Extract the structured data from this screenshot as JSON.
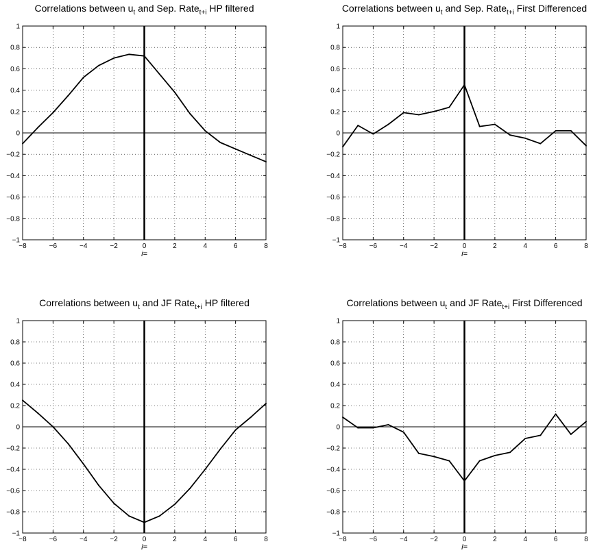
{
  "chart_data": [
    {
      "type": "line",
      "title": "Correlations between u_t and Sep. Rate_t+i HP filtered",
      "title_parts": {
        "pre": "Correlations between u",
        "sub1": "t",
        "mid": " and Sep. Rate",
        "sub2": "t+i",
        "post": " HP filtered"
      },
      "xlabel": "i=",
      "ylabel": "",
      "xlim": [
        -8,
        8
      ],
      "ylim": [
        -1,
        1
      ],
      "xticks": [
        -8,
        -6,
        -4,
        -2,
        0,
        2,
        4,
        6,
        8
      ],
      "yticks": [
        -1,
        -0.8,
        -0.6,
        -0.4,
        -0.2,
        0,
        0.2,
        0.4,
        0.6,
        0.8,
        1
      ],
      "grid": true,
      "series_color": "#000000",
      "x": [
        -8,
        -7,
        -6,
        -5,
        -4,
        -3,
        -2,
        -1,
        0,
        1,
        2,
        3,
        4,
        5,
        6,
        7,
        8
      ],
      "values": [
        -0.1,
        0.05,
        0.19,
        0.35,
        0.52,
        0.63,
        0.7,
        0.735,
        0.72,
        0.55,
        0.38,
        0.18,
        0.02,
        -0.09,
        -0.15,
        -0.21,
        -0.27
      ]
    },
    {
      "type": "line",
      "title": "Correlations between u_t and Sep. Rate_t+i First Differenced",
      "title_parts": {
        "pre": "Correlations between u",
        "sub1": "t",
        "mid": " and Sep. Rate",
        "sub2": "t+i",
        "post": " First Differenced"
      },
      "xlabel": "i=",
      "ylabel": "",
      "xlim": [
        -8,
        8
      ],
      "ylim": [
        -1,
        1
      ],
      "xticks": [
        -8,
        -6,
        -4,
        -2,
        0,
        2,
        4,
        6,
        8
      ],
      "yticks": [
        -1,
        -0.8,
        -0.6,
        -0.4,
        -0.2,
        0,
        0.2,
        0.4,
        0.6,
        0.8,
        1
      ],
      "grid": true,
      "series_color": "#000000",
      "x": [
        -8,
        -7,
        -6,
        -5,
        -4,
        -3,
        -2,
        -1,
        0,
        1,
        2,
        3,
        4,
        5,
        6,
        7,
        8
      ],
      "values": [
        -0.13,
        0.07,
        -0.01,
        0.08,
        0.19,
        0.17,
        0.2,
        0.24,
        0.45,
        0.06,
        0.08,
        -0.02,
        -0.05,
        -0.1,
        0.02,
        0.02,
        -0.12
      ]
    },
    {
      "type": "line",
      "title": "Correlations between u_t and JF Rate_t+i HP filtered",
      "title_parts": {
        "pre": "Correlations between u",
        "sub1": "t",
        "mid": " and JF Rate",
        "sub2": "t+i",
        "post": " HP filtered"
      },
      "xlabel": "i=",
      "ylabel": "",
      "xlim": [
        -8,
        8
      ],
      "ylim": [
        -1,
        1
      ],
      "xticks": [
        -8,
        -6,
        -4,
        -2,
        0,
        2,
        4,
        6,
        8
      ],
      "yticks": [
        -1,
        -0.8,
        -0.6,
        -0.4,
        -0.2,
        0,
        0.2,
        0.4,
        0.6,
        0.8,
        1
      ],
      "grid": true,
      "series_color": "#000000",
      "x": [
        -8,
        -7,
        -6,
        -5,
        -4,
        -3,
        -2,
        -1,
        0,
        1,
        2,
        3,
        4,
        5,
        6,
        7,
        8
      ],
      "values": [
        0.25,
        0.13,
        0.0,
        -0.16,
        -0.35,
        -0.55,
        -0.72,
        -0.84,
        -0.9,
        -0.84,
        -0.73,
        -0.58,
        -0.4,
        -0.21,
        -0.03,
        0.09,
        0.22
      ]
    },
    {
      "type": "line",
      "title": "Correlations between u_t and JF Rate_t+i First Differenced",
      "title_parts": {
        "pre": "Correlations between u",
        "sub1": "t",
        "mid": " and JF Rate",
        "sub2": "t+i",
        "post": " First Differenced"
      },
      "xlabel": "i=",
      "ylabel": "",
      "xlim": [
        -8,
        8
      ],
      "ylim": [
        -1,
        1
      ],
      "xticks": [
        -8,
        -6,
        -4,
        -2,
        0,
        2,
        4,
        6,
        8
      ],
      "yticks": [
        -1,
        -0.8,
        -0.6,
        -0.4,
        -0.2,
        0,
        0.2,
        0.4,
        0.6,
        0.8,
        1
      ],
      "grid": true,
      "series_color": "#000000",
      "x": [
        -8,
        -7,
        -6,
        -5,
        -4,
        -3,
        -2,
        -1,
        0,
        1,
        2,
        3,
        4,
        5,
        6,
        7,
        8
      ],
      "values": [
        0.09,
        -0.01,
        -0.01,
        0.02,
        -0.05,
        -0.25,
        -0.28,
        -0.32,
        -0.51,
        -0.32,
        -0.27,
        -0.24,
        -0.11,
        -0.08,
        0.12,
        -0.07,
        0.05
      ]
    }
  ]
}
